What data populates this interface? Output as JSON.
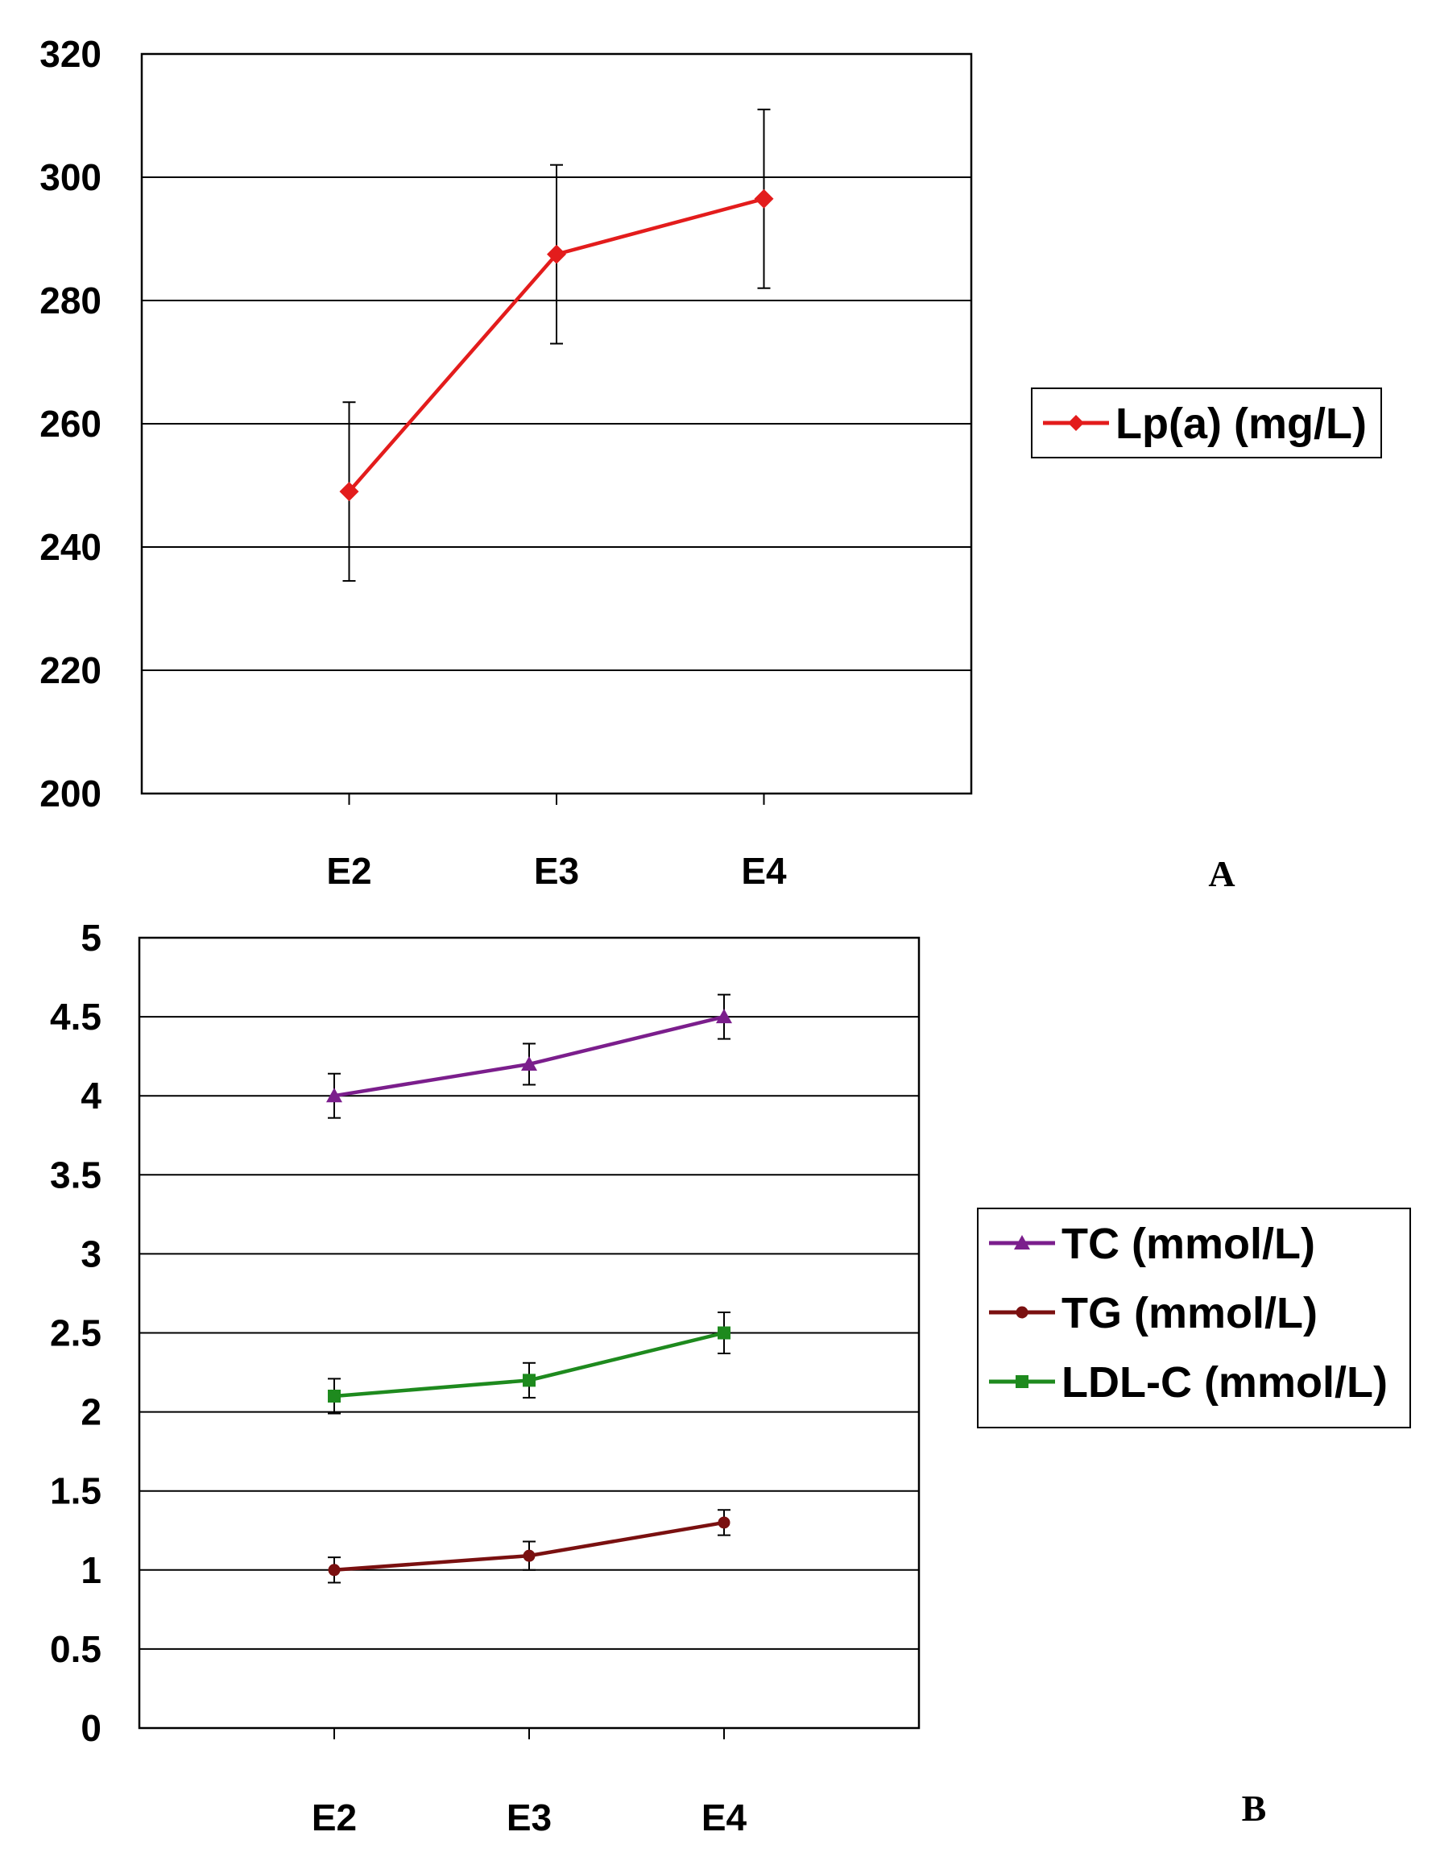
{
  "chart_data": [
    {
      "type": "line",
      "panel_label": "A",
      "categories": [
        "E2",
        "E3",
        "E4"
      ],
      "ylim": [
        200,
        320
      ],
      "yticks": [
        "200",
        "220",
        "240",
        "260",
        "280",
        "300",
        "320"
      ],
      "grid": true,
      "legend_position": "right",
      "series": [
        {
          "name": "Lp(a) (mg/L)",
          "color": "#e31c1c",
          "marker": "diamond",
          "values": [
            249,
            287.5,
            296.5
          ],
          "error": [
            14.5,
            14.5,
            14.5
          ]
        }
      ]
    },
    {
      "type": "line",
      "panel_label": "B",
      "categories": [
        "E2",
        "E3",
        "E4"
      ],
      "ylim": [
        0,
        5
      ],
      "yticks": [
        "0",
        "0.5",
        "1",
        "1.5",
        "2",
        "2.5",
        "3",
        "3.5",
        "4",
        "4.5",
        "5"
      ],
      "grid": true,
      "legend_position": "right",
      "series": [
        {
          "name": "TC (mmol/L)",
          "color": "#7b1e8c",
          "marker": "triangle",
          "values": [
            4.0,
            4.2,
            4.5
          ],
          "error": [
            0.14,
            0.13,
            0.14
          ]
        },
        {
          "name": "TG (mmol/L)",
          "color": "#7a1010",
          "marker": "circle",
          "values": [
            1.0,
            1.09,
            1.3
          ],
          "error": [
            0.08,
            0.09,
            0.08
          ]
        },
        {
          "name": "LDL-C (mmol/L)",
          "color": "#1e8a1e",
          "marker": "square",
          "values": [
            2.1,
            2.2,
            2.5
          ],
          "error": [
            0.11,
            0.11,
            0.13
          ]
        }
      ]
    }
  ]
}
